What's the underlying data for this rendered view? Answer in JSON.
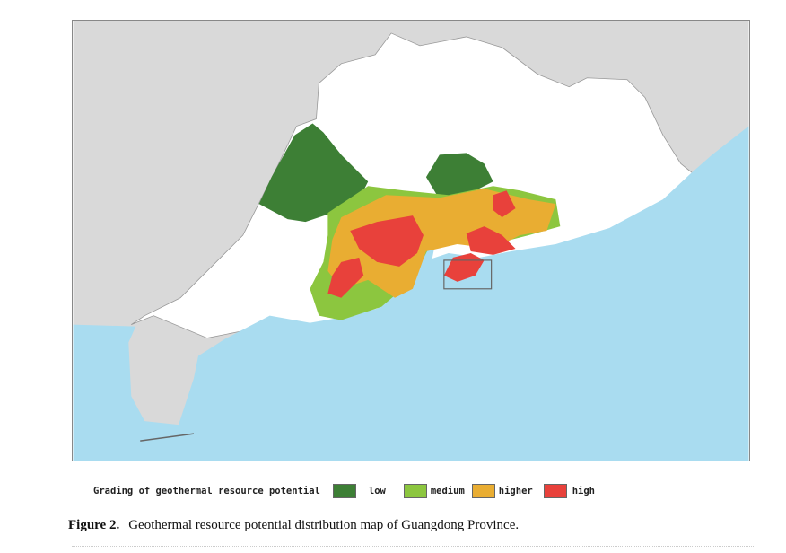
{
  "legend": {
    "title": "Grading of geothermal resource potential",
    "items": [
      {
        "label": "low",
        "color": "#3d7f35"
      },
      {
        "label": "medium",
        "color": "#8cc63f"
      },
      {
        "label": "higher",
        "color": "#e9ad32"
      },
      {
        "label": "high",
        "color": "#e8413b"
      }
    ]
  },
  "caption": {
    "label": "Figure 2.",
    "text": "Geothermal resource potential distribution map of Guangdong Province."
  },
  "colors": {
    "sea": "#a9dcf0",
    "neighbor_land": "#d9d9d9",
    "province": "#ffffff"
  }
}
